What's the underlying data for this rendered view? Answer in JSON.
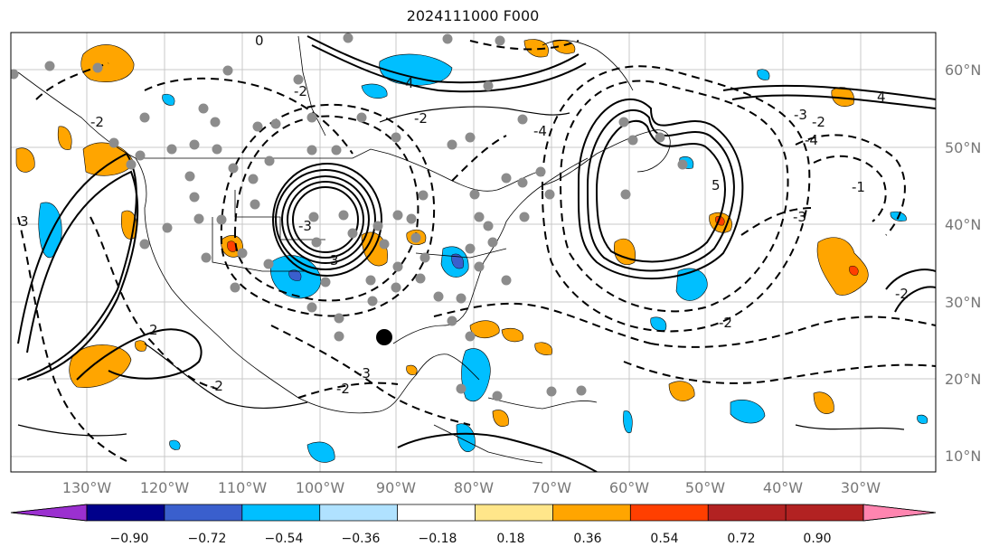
{
  "title": "2024111000 F000",
  "lat_labels": [
    "60°N",
    "50°N",
    "40°N",
    "30°N",
    "20°N",
    "10°N"
  ],
  "lon_labels": [
    "130°W",
    "120°W",
    "110°W",
    "100°W",
    "90°W",
    "80°W",
    "70°W",
    "60°W",
    "50°W",
    "40°W",
    "30°W"
  ],
  "colorbar": {
    "ticks": [
      "−0.90",
      "−0.72",
      "−0.54",
      "−0.36",
      "−0.18",
      "0.18",
      "0.36",
      "0.54",
      "0.72",
      "0.90"
    ],
    "colors": [
      "#9b30d0",
      "#00008b",
      "#3a5fcd",
      "#00bfff",
      "#b0e2ff",
      "#ffffff",
      "#ffe68a",
      "#ffa500",
      "#ff3f00",
      "#b22222",
      "#ff85b0"
    ]
  },
  "contour_labels": [
    "4",
    "-2",
    "-4",
    "-3",
    "3",
    "4",
    "-3",
    "-4",
    "-2",
    "5",
    "-3",
    "-2",
    "-1",
    "-2",
    "-2",
    "3",
    "2",
    "-2",
    "-2",
    "0",
    "-2",
    "-3"
  ],
  "palette": {
    "shade_orange": "#ffa500",
    "shade_blue": "#00bfff",
    "marker_gray": "#8c8c8c",
    "grid": "#c8c8c8"
  }
}
